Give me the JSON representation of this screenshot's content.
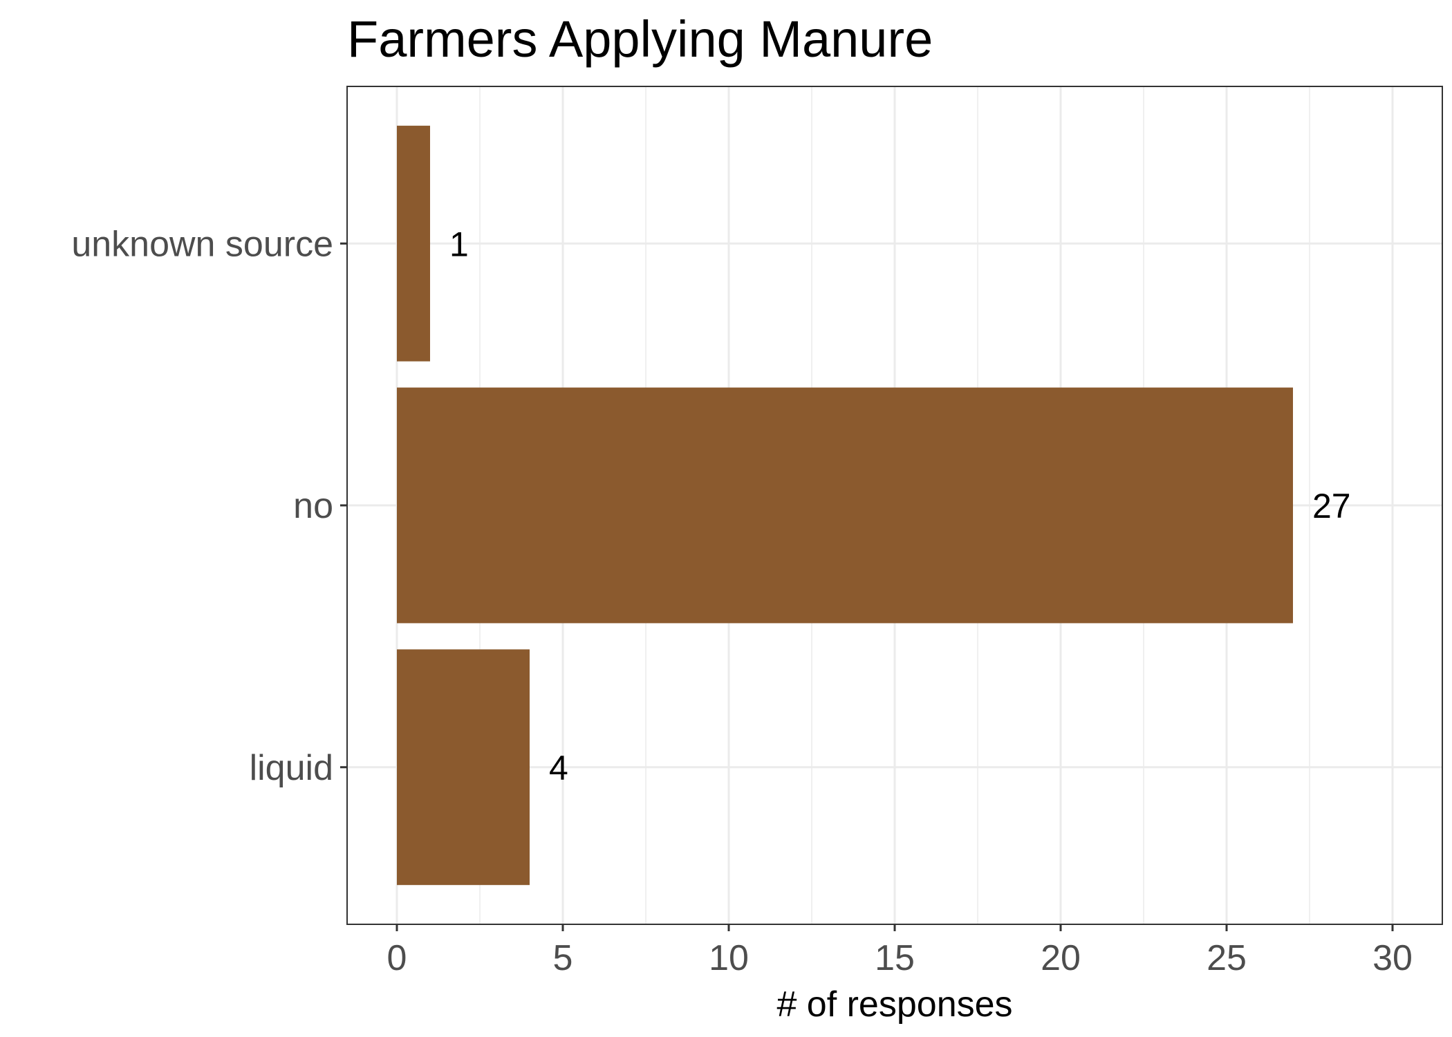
{
  "chart_data": {
    "type": "bar",
    "orientation": "horizontal",
    "title": "Farmers Applying Manure",
    "xlabel": "# of responses",
    "ylabel": "",
    "categories": [
      "liquid",
      "no",
      "unknown source"
    ],
    "values": [
      4,
      27,
      1
    ],
    "data_labels": [
      "4",
      "27",
      "1"
    ],
    "xlim": [
      -1.5,
      31.5
    ],
    "xticks": [
      0,
      5,
      10,
      15,
      20,
      25,
      30
    ],
    "xtick_labels": [
      "0",
      "5",
      "10",
      "15",
      "20",
      "25",
      "30"
    ],
    "grid": true,
    "legend": "none",
    "bar_color": "#8b5a2e",
    "grid_color": "#ebebeb",
    "panel_border_color": "#333333"
  }
}
